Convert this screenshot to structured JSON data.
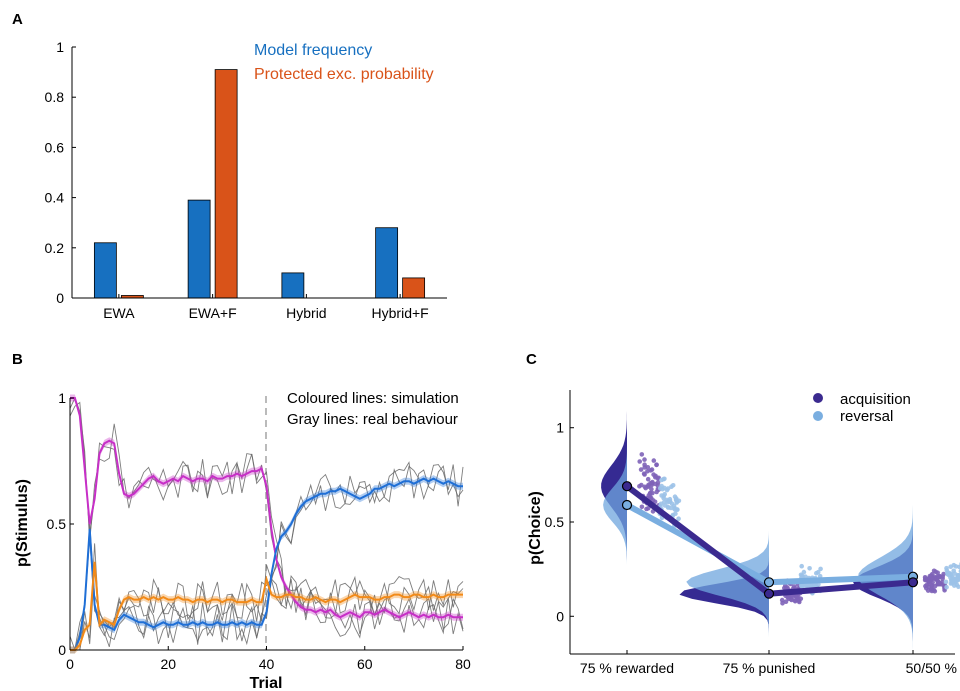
{
  "panel_labels": {
    "a": "A",
    "b": "B",
    "c": "C"
  },
  "chart_data": [
    {
      "id": "A",
      "type": "bar",
      "title": "",
      "xlabel": "",
      "ylabel": "",
      "ylim": [
        0,
        1
      ],
      "yticks": [
        0,
        0.2,
        0.4,
        0.6,
        0.8,
        1
      ],
      "ytick_labels": [
        "0",
        "0.2",
        "0.4",
        "0.6",
        "0.8",
        "1"
      ],
      "categories": [
        "EWA",
        "EWA+F",
        "Hybrid",
        "Hybrid+F"
      ],
      "series": [
        {
          "name": "Model frequency",
          "color": "#1770c0",
          "values": [
            0.22,
            0.39,
            0.1,
            0.28
          ]
        },
        {
          "name": "Protected exc. probability",
          "color": "#d95319",
          "values": [
            0.01,
            0.91,
            0.0,
            0.08
          ]
        }
      ],
      "legend": "top-right, text only",
      "grid": false
    },
    {
      "id": "B",
      "type": "line",
      "title": "",
      "xlabel": "Trial",
      "ylabel": "p(Stimulus)",
      "xlim": [
        0,
        80
      ],
      "ylim": [
        0,
        1
      ],
      "xticks": [
        0,
        20,
        40,
        60,
        80
      ],
      "yticks": [
        0,
        0.5,
        1
      ],
      "ytick_labels": [
        "0",
        "0.5",
        "1"
      ],
      "annotations": [
        "Coloured lines: simulation",
        "Gray lines: real behaviour"
      ],
      "reversal_line_x": 40,
      "x": [
        0,
        1,
        2,
        3,
        4,
        5,
        6,
        7,
        8,
        9,
        10,
        11,
        12,
        13,
        14,
        15,
        16,
        17,
        18,
        19,
        20,
        21,
        22,
        23,
        24,
        25,
        26,
        27,
        28,
        29,
        30,
        31,
        32,
        33,
        34,
        35,
        36,
        37,
        38,
        39,
        40,
        41,
        42,
        43,
        44,
        45,
        46,
        47,
        48,
        49,
        50,
        51,
        52,
        53,
        54,
        55,
        56,
        57,
        58,
        59,
        60,
        61,
        62,
        63,
        64,
        65,
        66,
        67,
        68,
        69,
        70,
        71,
        72,
        73,
        74,
        75,
        76,
        77,
        78,
        79,
        80
      ],
      "series": [
        {
          "color": "#c72fc7",
          "values": [
            1,
            1,
            0.93,
            0.72,
            0.5,
            0.6,
            0.78,
            0.82,
            0.83,
            0.82,
            0.7,
            0.62,
            0.61,
            0.62,
            0.64,
            0.66,
            0.68,
            0.69,
            0.67,
            0.66,
            0.67,
            0.68,
            0.67,
            0.69,
            0.68,
            0.67,
            0.68,
            0.68,
            0.67,
            0.69,
            0.68,
            0.68,
            0.69,
            0.69,
            0.7,
            0.69,
            0.7,
            0.71,
            0.71,
            0.72,
            0.65,
            0.48,
            0.36,
            0.29,
            0.25,
            0.22,
            0.19,
            0.17,
            0.16,
            0.16,
            0.15,
            0.16,
            0.15,
            0.16,
            0.14,
            0.13,
            0.14,
            0.15,
            0.14,
            0.13,
            0.15,
            0.15,
            0.14,
            0.15,
            0.16,
            0.15,
            0.14,
            0.13,
            0.14,
            0.15,
            0.14,
            0.13,
            0.14,
            0.13,
            0.14,
            0.13,
            0.13,
            0.14,
            0.13,
            0.13,
            0.13
          ]
        },
        {
          "color": "#1f6fd6",
          "values": [
            0,
            0,
            0.05,
            0.18,
            0.48,
            0.18,
            0.1,
            0.1,
            0.09,
            0.08,
            0.12,
            0.14,
            0.13,
            0.12,
            0.11,
            0.11,
            0.1,
            0.09,
            0.1,
            0.11,
            0.1,
            0.1,
            0.11,
            0.1,
            0.1,
            0.11,
            0.1,
            0.11,
            0.1,
            0.1,
            0.11,
            0.1,
            0.1,
            0.11,
            0.1,
            0.11,
            0.1,
            0.11,
            0.1,
            0.1,
            0.15,
            0.3,
            0.4,
            0.45,
            0.47,
            0.5,
            0.54,
            0.57,
            0.59,
            0.6,
            0.61,
            0.62,
            0.62,
            0.63,
            0.63,
            0.64,
            0.63,
            0.62,
            0.61,
            0.6,
            0.61,
            0.62,
            0.64,
            0.64,
            0.65,
            0.66,
            0.65,
            0.66,
            0.67,
            0.67,
            0.66,
            0.67,
            0.68,
            0.67,
            0.68,
            0.67,
            0.66,
            0.67,
            0.66,
            0.65,
            0.65
          ]
        },
        {
          "color": "#f28a18",
          "values": [
            0,
            0,
            0.02,
            0.08,
            0.1,
            0.35,
            0.1,
            0.12,
            0.11,
            0.1,
            0.16,
            0.2,
            0.21,
            0.2,
            0.2,
            0.21,
            0.2,
            0.21,
            0.2,
            0.21,
            0.2,
            0.2,
            0.21,
            0.2,
            0.2,
            0.19,
            0.2,
            0.2,
            0.19,
            0.2,
            0.2,
            0.19,
            0.2,
            0.2,
            0.19,
            0.19,
            0.19,
            0.2,
            0.19,
            0.19,
            0.28,
            0.22,
            0.21,
            0.21,
            0.22,
            0.22,
            0.21,
            0.21,
            0.2,
            0.2,
            0.21,
            0.2,
            0.19,
            0.2,
            0.2,
            0.19,
            0.2,
            0.21,
            0.22,
            0.21,
            0.21,
            0.21,
            0.2,
            0.2,
            0.21,
            0.21,
            0.22,
            0.22,
            0.21,
            0.21,
            0.22,
            0.22,
            0.21,
            0.21,
            0.22,
            0.21,
            0.21,
            0.22,
            0.22,
            0.22,
            0.22
          ]
        }
      ],
      "grid": false
    },
    {
      "id": "C",
      "type": "line",
      "title": "",
      "xlabel": "",
      "ylabel": "p(Choice)",
      "ylim": [
        -0.2,
        1.2
      ],
      "yticks": [
        0,
        0.5,
        1
      ],
      "ytick_labels": [
        "0",
        "0.5",
        "1"
      ],
      "categories": [
        "75 % rewarded",
        "75 % punished",
        "50/50 %"
      ],
      "series": [
        {
          "name": "acquisition",
          "color": "#3b2a8f",
          "values": [
            0.69,
            0.12,
            0.18
          ]
        },
        {
          "name": "reversal",
          "color": "#7aaee0",
          "values": [
            0.59,
            0.18,
            0.21
          ]
        }
      ],
      "legend": "top-right",
      "grid": false
    }
  ]
}
